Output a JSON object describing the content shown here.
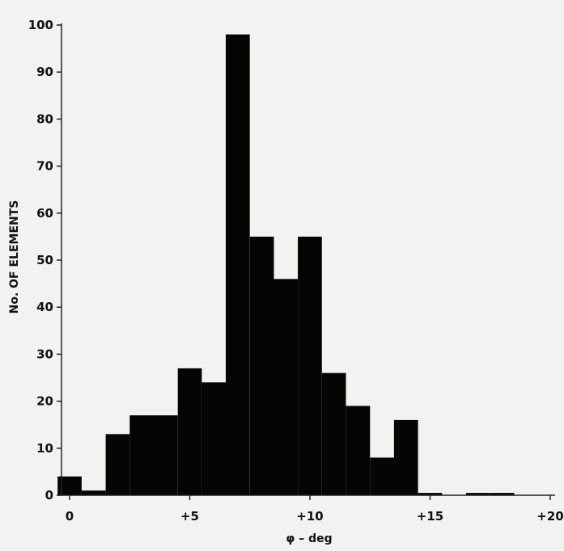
{
  "chart_data": {
    "type": "bar",
    "title": "",
    "xlabel": "φ – deg",
    "ylabel": "No. OF ELEMENTS",
    "xlim": [
      -0.5,
      20.2
    ],
    "ylim": [
      0,
      100
    ],
    "bin_width": 1,
    "x_ticks": [
      0,
      5,
      10,
      15,
      20
    ],
    "x_tick_labels": [
      "0",
      "+5",
      "+10",
      "+15",
      "+20"
    ],
    "y_ticks": [
      0,
      10,
      20,
      30,
      40,
      50,
      60,
      70,
      80,
      90,
      100
    ],
    "y_tick_labels": [
      "0",
      "10",
      "20",
      "30",
      "40",
      "50",
      "60",
      "70",
      "80",
      "90",
      "100"
    ],
    "bins": [
      {
        "x": 0,
        "value": 4
      },
      {
        "x": 1,
        "value": 1
      },
      {
        "x": 2,
        "value": 13
      },
      {
        "x": 3,
        "value": 17
      },
      {
        "x": 4,
        "value": 17
      },
      {
        "x": 5,
        "value": 27
      },
      {
        "x": 6,
        "value": 24
      },
      {
        "x": 7,
        "value": 98
      },
      {
        "x": 8,
        "value": 55
      },
      {
        "x": 9,
        "value": 46
      },
      {
        "x": 10,
        "value": 55
      },
      {
        "x": 11,
        "value": 26
      },
      {
        "x": 12,
        "value": 19
      },
      {
        "x": 13,
        "value": 8
      },
      {
        "x": 14,
        "value": 16
      },
      {
        "x": 15,
        "value": 0.5
      },
      {
        "x": 17,
        "value": 0.5
      },
      {
        "x": 18,
        "value": 0.5
      }
    ],
    "bar_color": "#050505",
    "grid": false,
    "legend": "none"
  }
}
